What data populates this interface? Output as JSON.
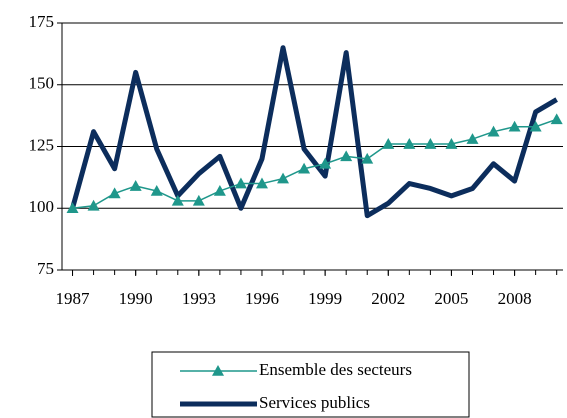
{
  "chart_data": {
    "type": "line",
    "x": [
      1987,
      1988,
      1989,
      1990,
      1991,
      1992,
      1993,
      1994,
      1995,
      1996,
      1997,
      1998,
      1999,
      2000,
      2001,
      2002,
      2003,
      2004,
      2005,
      2006,
      2007,
      2008,
      2009,
      2010
    ],
    "series": [
      {
        "name": "Ensemble des secteurs",
        "color": "#1f978b",
        "marker": "triangle",
        "values": [
          100,
          101,
          106,
          109,
          107,
          103,
          103,
          107,
          110,
          110,
          112,
          116,
          118,
          121,
          120,
          126,
          126,
          126,
          126,
          128,
          131,
          133,
          133,
          136
        ]
      },
      {
        "name": "Services publics",
        "color": "#0c2d5c",
        "values": [
          100,
          131,
          116,
          155,
          124,
          105,
          114,
          121,
          100,
          120,
          165,
          124,
          113,
          163,
          97,
          102,
          110,
          108,
          105,
          108,
          118,
          111,
          139,
          144
        ]
      }
    ],
    "xlim": [
      1986.5,
      2010.3
    ],
    "xticks": [
      1987,
      1990,
      1993,
      1996,
      1999,
      2002,
      2005,
      2008
    ],
    "ylim": [
      75,
      175
    ],
    "yticks": [
      75,
      100,
      125,
      150,
      175
    ],
    "grid": true,
    "legend": "bottom"
  }
}
